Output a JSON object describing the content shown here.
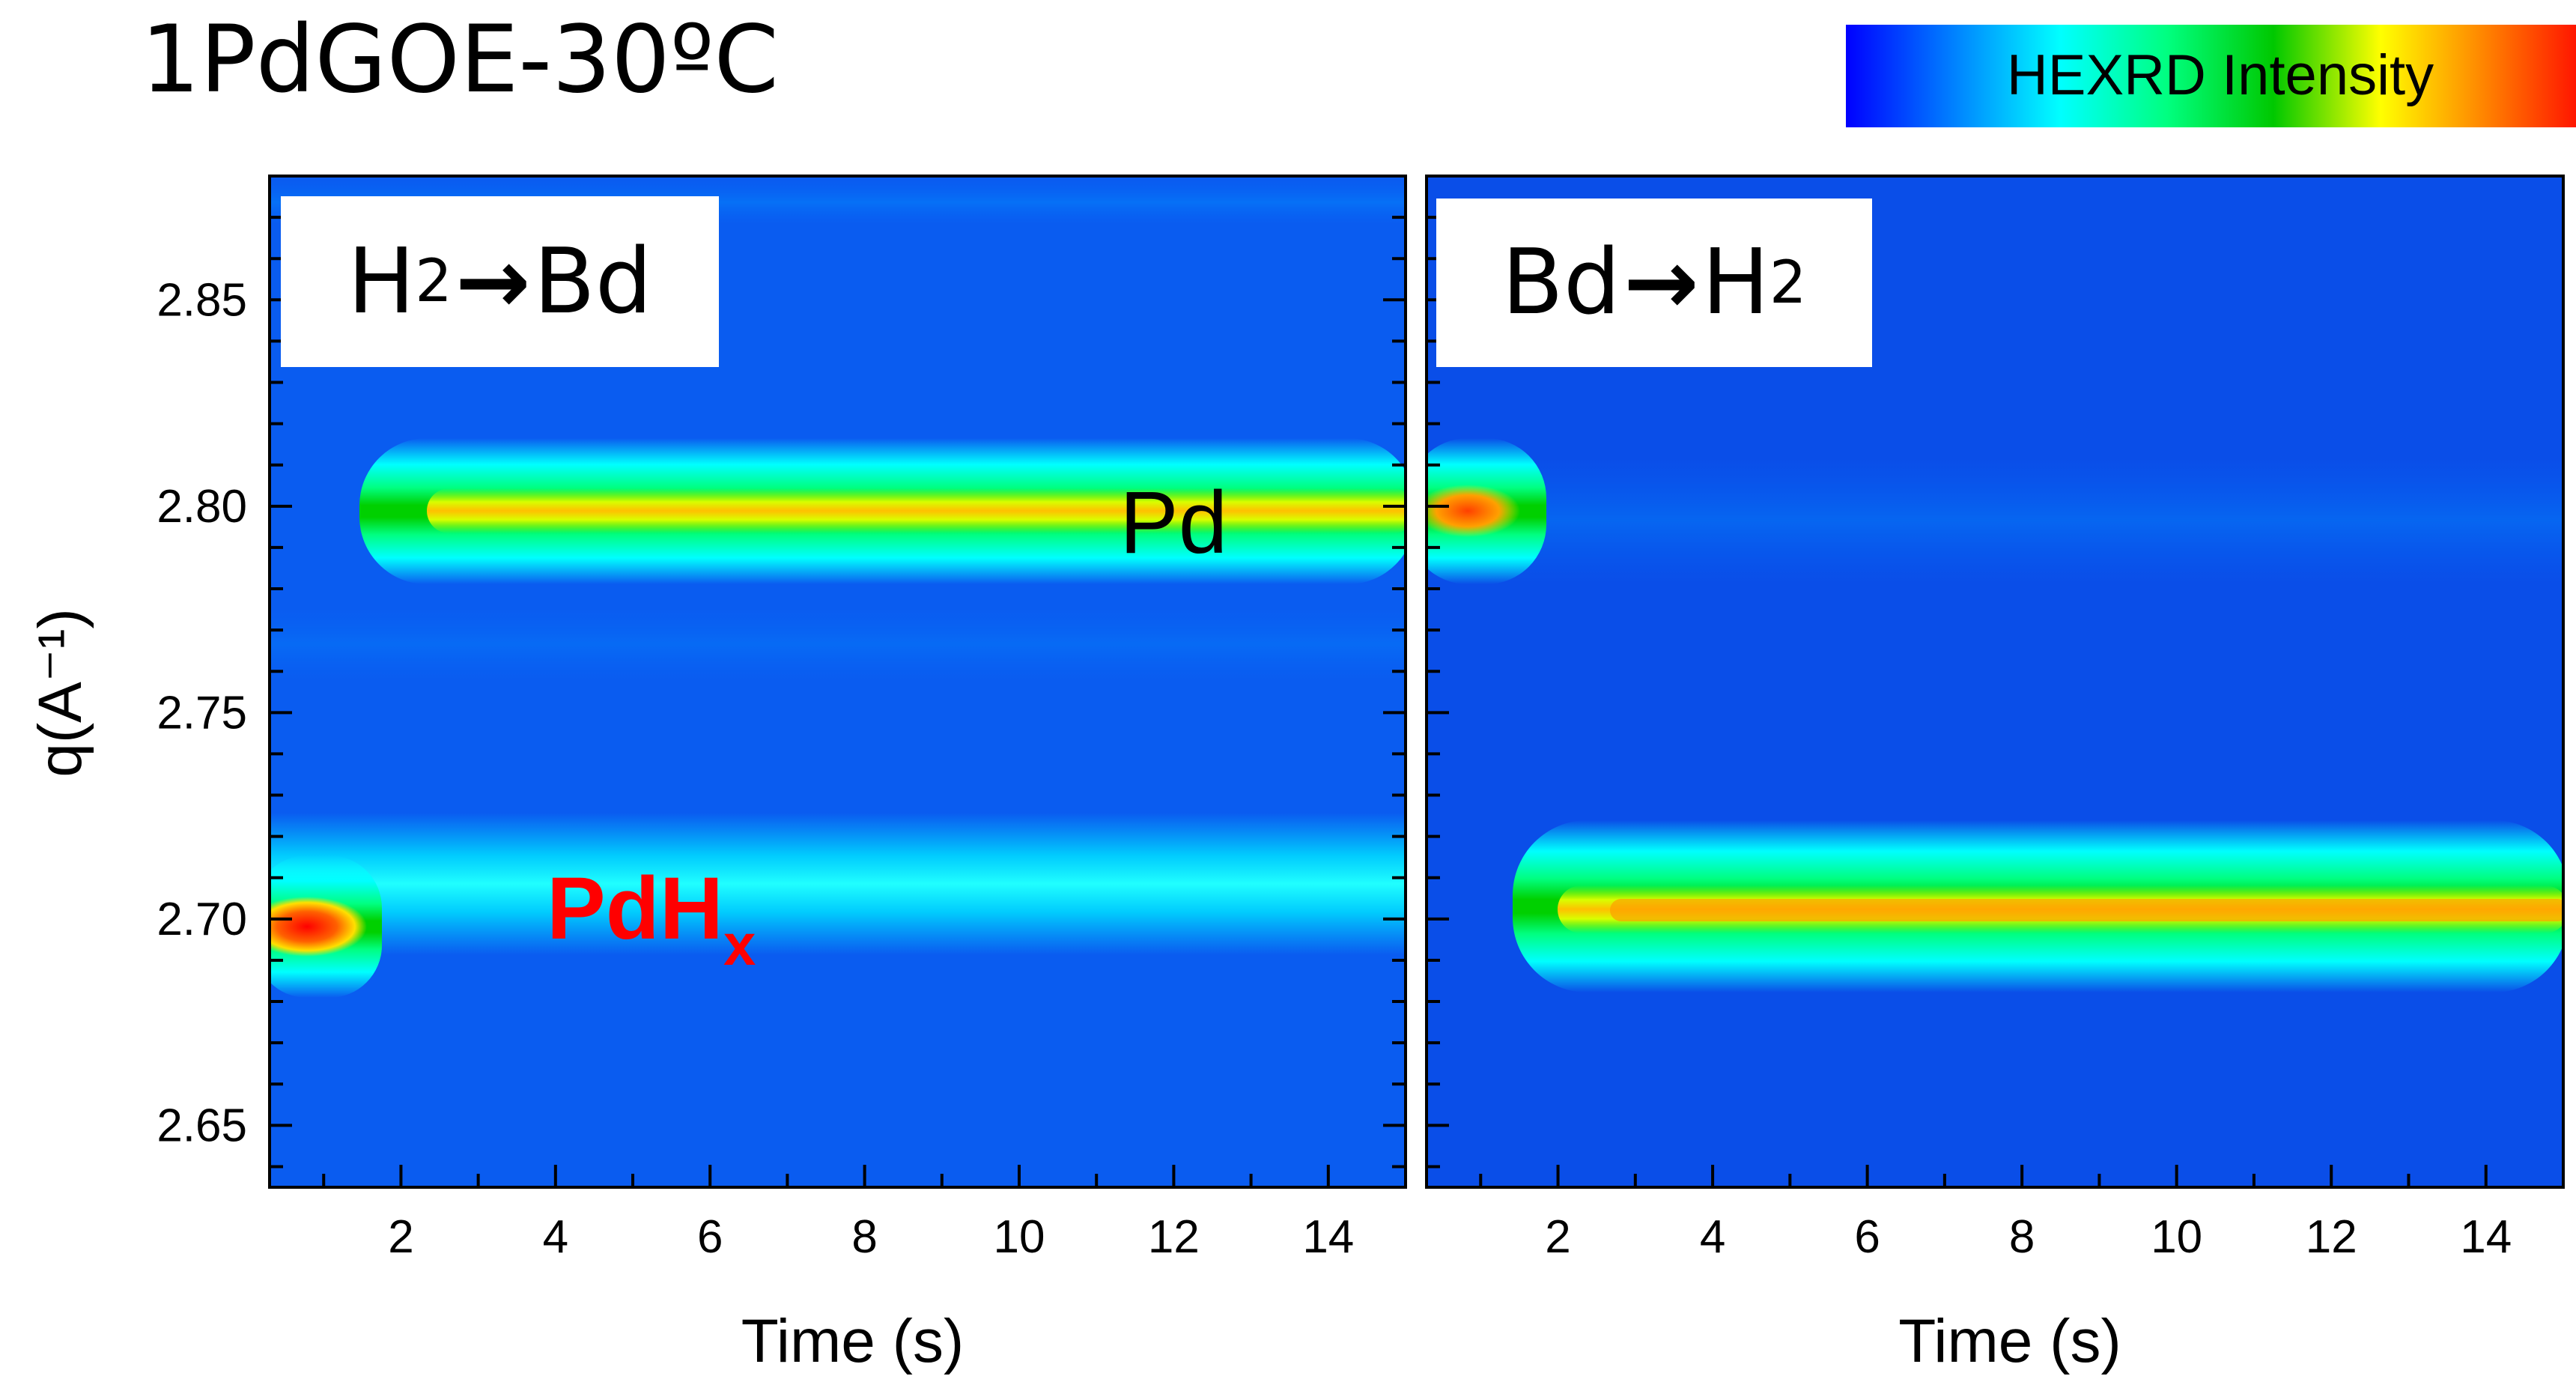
{
  "figure_title": "1PdGOE-30ºC",
  "colorbar": {
    "label": "HEXRD Intensity",
    "stops": [
      "#0000ff",
      "#0080ff",
      "#00ffff",
      "#00ff80",
      "#00c800",
      "#ffff00",
      "#ff8000",
      "#ff0000"
    ]
  },
  "annotations": {
    "pd": "Pd",
    "pdh_main": "PdH",
    "pdh_sub": "x"
  },
  "panels": [
    {
      "id": "left",
      "inset": {
        "species1": "H",
        "species1_sub": "2",
        "arrow": "→",
        "species2": "Bd"
      }
    },
    {
      "id": "right",
      "inset": {
        "species1": "Bd",
        "arrow": "→",
        "species2": "H",
        "species2_sub": "2"
      }
    }
  ],
  "chart_data": {
    "type": "heatmap",
    "title": "1PdGOE-30ºC",
    "xlabel": "Time (s)",
    "ylabel": "q(A⁻¹)",
    "xlim": [
      0.3,
      15
    ],
    "ylim": [
      2.635,
      2.88
    ],
    "xticks": [
      2,
      4,
      6,
      8,
      10,
      12,
      14
    ],
    "yticks": [
      2.65,
      2.7,
      2.75,
      2.8,
      2.85
    ],
    "ytick_labels": [
      "2.65",
      "2.70",
      "2.75",
      "2.80",
      "2.85"
    ],
    "panels": [
      {
        "name": "H2→Bd",
        "bands": [
          {
            "label": "Pd",
            "q": 2.8,
            "t_start": 1.7,
            "t_end": 15,
            "peak_intensity": 0.78
          },
          {
            "label": "PdHx",
            "q": 2.7,
            "t_start": 0.3,
            "t_end": 1.5,
            "peak_intensity": 1.0
          },
          {
            "label": "PdHx residual",
            "q": 2.7,
            "t_start": 1.5,
            "t_end": 15,
            "peak_intensity": 0.33
          }
        ]
      },
      {
        "name": "Bd→H2",
        "bands": [
          {
            "label": "Pd",
            "q": 2.8,
            "t_start": 0.3,
            "t_end": 1.4,
            "peak_intensity": 0.88
          },
          {
            "label": "PdHx",
            "q": 2.7,
            "t_start": 1.6,
            "t_end": 15,
            "peak_intensity": 0.86
          }
        ]
      }
    ]
  }
}
